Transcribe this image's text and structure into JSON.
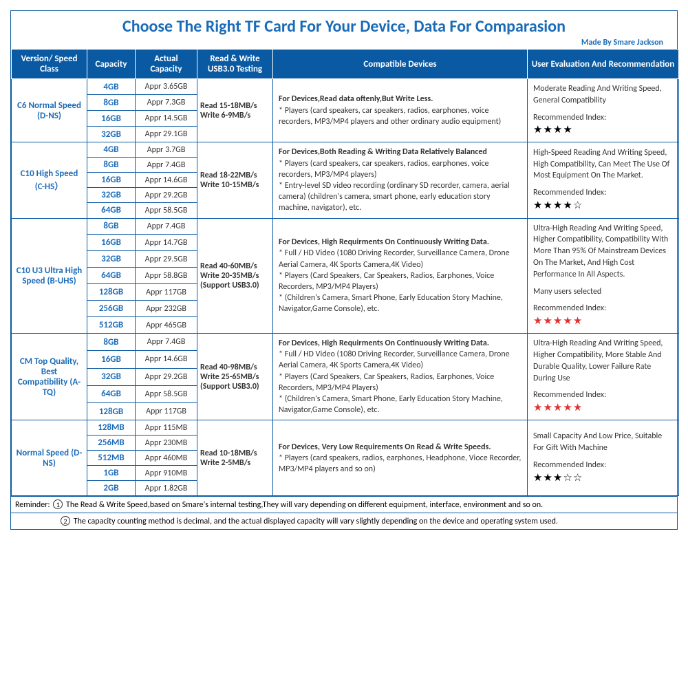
{
  "title": "Choose The Right TF Card For Your Device, Data For Comparasion",
  "byline": "Made By Smare Jackson",
  "headers": {
    "version": "Version/\nSpeed Class",
    "capacity": "Capacity",
    "actual": "Actual Capacity",
    "speed": "Read & Write USB3.0 Testing",
    "devices": "Compatible Devices",
    "eval": "User Evaluation And Recommendation"
  },
  "groups": [
    {
      "version": "C6 Normal Speed (D-NS)",
      "speed": "Read 15-18MB/s Write 6-9MB/s",
      "devices_bold": "For Devices,Read data oftenly,But Write Less.",
      "devices_body": "* Players (card speakers, car speakers, radios, earphones, voice recorders, MP3/MP4 players and other ordinary audio equipment)",
      "eval_text": "Moderate Reading And Writing Speed, General Compatibility",
      "eval_rec_label": "Recommended Index:",
      "stars_filled": 4,
      "stars_total": 4,
      "star_color": "black",
      "rows": [
        {
          "capacity": "4GB",
          "actual": "Appr 3.65GB"
        },
        {
          "capacity": "8GB",
          "actual": "Appr 7.3GB"
        },
        {
          "capacity": "16GB",
          "actual": "Appr 14.5GB"
        },
        {
          "capacity": "32GB",
          "actual": "Appr 29.1GB"
        }
      ]
    },
    {
      "version": "C10 High Speed (C-HS）",
      "speed": "Read 18-22MB/s Write 10-15MB/s",
      "devices_bold": "For Devices,Both Reading  & Writing Data Relatively Balanced",
      "devices_body": "* Players (card speakers, car speakers, radios, earphones, voice recorders, MP3/MP4 players)\n* Entry-level SD video recording (ordinary SD recorder, camera, aerial camera) (children's camera, smart phone, early education story machine, navigator), etc.",
      "eval_text": "High-Speed Reading And Writing Speed, High Compatibility, Can Meet The Use Of Most Equipment On The Market.",
      "eval_rec_label": "Recommended Index:",
      "stars_filled": 4,
      "stars_total": 5,
      "star_color": "black",
      "rows": [
        {
          "capacity": "4GB",
          "actual": "Appr 3.7GB"
        },
        {
          "capacity": "8GB",
          "actual": "Appr 7.4GB"
        },
        {
          "capacity": "16GB",
          "actual": "Appr 14.6GB"
        },
        {
          "capacity": "32GB",
          "actual": "Appr 29.2GB"
        },
        {
          "capacity": "64GB",
          "actual": "Appr 58.5GB"
        }
      ]
    },
    {
      "version": "C10 U3 Ultra High Speed\n(B-UHS)",
      "speed": "Read 40-60MB/s Write 20-35MB/s (Support USB3.0)",
      "devices_bold": "For Devices, High Requirments On Continuously Writing Data.",
      "devices_body": "* Full / HD Video (1080 Driving Recorder, Surveillance Camera, Drone Aerial Camera, 4K Sports Camera,4K Video)\n* Players (Card Speakers, Car Speakers, Radios, Earphones, Voice Recorders, MP3/MP4 Players)\n* (Children's Camera, Smart Phone, Early Education Story Machine, Navigator,Game Console), etc.",
      "eval_text": "Ultra-High Reading And Writing Speed, Higher Compatibility, Compatibility With More Than 95% Of Mainstream Devices On The Market, And High Cost Performance In All Aspects.",
      "eval_extra": "Many users selected",
      "eval_rec_label": "Recommended Index:",
      "stars_filled": 5,
      "stars_total": 5,
      "star_color": "red",
      "rows": [
        {
          "capacity": "8GB",
          "actual": "Appr 7.4GB"
        },
        {
          "capacity": "16GB",
          "actual": "Appr 14.7GB"
        },
        {
          "capacity": "32GB",
          "actual": "Appr 29.5GB"
        },
        {
          "capacity": "64GB",
          "actual": "Appr 58.8GB"
        },
        {
          "capacity": "128GB",
          "actual": "Appr 117GB"
        },
        {
          "capacity": "256GB",
          "actual": "Appr 232GB"
        },
        {
          "capacity": "512GB",
          "actual": "Appr 465GB"
        }
      ]
    },
    {
      "version": "CM Top Quality, Best Compatibility (A-TQ)",
      "speed": "Read 40-98MB/s Write 25-65MB/s (Support USB3.0)",
      "devices_bold": "For Devices, High Requirments On Continuously Writing Data.",
      "devices_body": "* Full / HD Video (1080 Driving Recorder, Surveillance Camera, Drone Aerial Camera, 4K Sports Camera,4K Video)\n* Players (Card Speakers, Car Speakers, Radios, Earphones, Voice Recorders, MP3/MP4 Players)\n* (Children's Camera, Smart Phone, Early Education Story Machine, Navigator,Game Console), etc.",
      "eval_text": "Ultra-High Reading And Writing Speed, Higher Compatibility, More Stable And Durable Quality, Lower Failure Rate During Use",
      "eval_rec_label": "Recommended Index:",
      "stars_filled": 5,
      "stars_total": 5,
      "star_color": "red",
      "rows": [
        {
          "capacity": "8GB",
          "actual": "Appr 7.4GB"
        },
        {
          "capacity": "16GB",
          "actual": "Appr 14.6GB"
        },
        {
          "capacity": "32GB",
          "actual": "Appr 29.2GB"
        },
        {
          "capacity": "64GB",
          "actual": "Appr 58.5GB"
        },
        {
          "capacity": "128GB",
          "actual": "Appr 117GB"
        }
      ]
    },
    {
      "version": "Normal Speed (D-NS)",
      "speed": "Read 10-18MB/s Write 2-5MB/s",
      "devices_bold": "For Devices, Very Low Requirements On Read & Write Speeds.",
      "devices_body": "* Players (card speakers, radios, earphones, Headphone, Vioce Recorder, MP3/MP4 players and so on)",
      "eval_text": "Small Capacity And Low Price, Suitable For Gift With Machine",
      "eval_rec_label": "Recommended Index:",
      "stars_filled": 3,
      "stars_total": 5,
      "star_color": "black",
      "rows": [
        {
          "capacity": "128MB",
          "actual": "Appr 115MB"
        },
        {
          "capacity": "256MB",
          "actual": "Appr 230MB"
        },
        {
          "capacity": "512MB",
          "actual": "Appr 460MB"
        },
        {
          "capacity": "1GB",
          "actual": "Appr 910MB"
        },
        {
          "capacity": "2GB",
          "actual": "Appr 1.82GB"
        }
      ]
    }
  ],
  "reminder_label": "Reminder:",
  "reminder1": "The Read & Write Speed,based on Smare's internal testing,They will vary depending on different equipment, interface, environment and so on.",
  "reminder2": "The capacity counting method is decimal, and the actual displayed capacity will vary slightly depending on the device and operating system used."
}
